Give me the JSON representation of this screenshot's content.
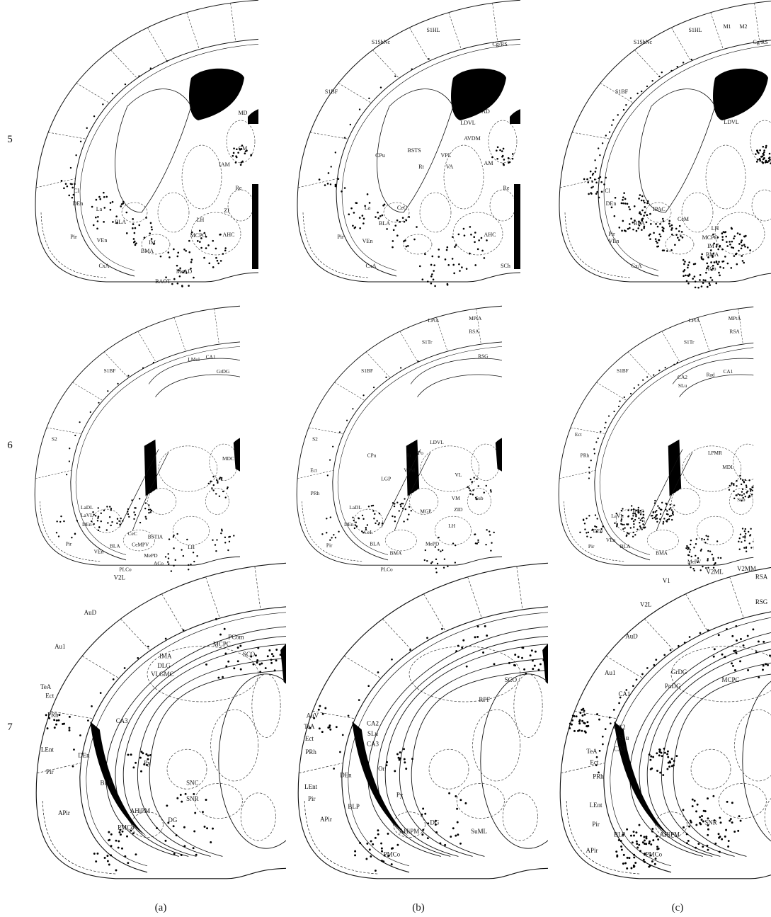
{
  "figure": {
    "row_labels": [
      "5",
      "6",
      "7"
    ],
    "panel_labels": [
      "(a)",
      "(b)",
      "(c)"
    ],
    "panels": [
      [
        {
          "regions": [
            "Cl",
            "DEn",
            "La",
            "BLA",
            "Pir",
            "VEn",
            "IM",
            "BMA",
            "CxA",
            "BAOT",
            "MeAD",
            "LH",
            "MCPO",
            "IAM",
            "Re",
            "MD",
            "CM",
            "ZI",
            "AHC"
          ]
        },
        {
          "regions": [
            "S1ShNc",
            "S1HL",
            "Cg/RS",
            "S1BF",
            "BSTS",
            "LDVL",
            "AD",
            "AVDM",
            "VPL",
            "Rt",
            "VA",
            "AM",
            "CPu",
            "La",
            "BLA",
            "Pir",
            "VEn",
            "CeC",
            "CxA",
            "Re",
            "AHC",
            "SCh"
          ]
        },
        {
          "regions": [
            "S1ShNc",
            "S1HL",
            "M1",
            "M2",
            "Cg/RS",
            "S1BF",
            "LDVL",
            "IPAC",
            "CeM",
            "BLA",
            "LH",
            "MCPO",
            "IM",
            "BMA",
            "CxA",
            "ACo",
            "Pir",
            "VEn",
            "Cl",
            "DEn"
          ]
        }
      ],
      [
        {
          "regions": [
            "S1BF",
            "S2",
            "LMol",
            "CA1",
            "GrDG",
            "MDC",
            "LaDL",
            "LaVL",
            "DEn",
            "CeC",
            "BSTIA",
            "CeMPV",
            "BLA",
            "Pir",
            "VEn",
            "LH",
            "MePD",
            "ACo",
            "PLCo"
          ]
        },
        {
          "regions": [
            "LPtA",
            "MPtA",
            "RSA",
            "S1Tr",
            "RSG",
            "S1BF",
            "S2",
            "Ect",
            "PRh",
            "CPu",
            "LDVL",
            "Po",
            "Rt",
            "VPM",
            "VL",
            "LGP",
            "MGP",
            "LH",
            "VM",
            "ZID",
            "Sub",
            "LaDL",
            "DEn",
            "CeL",
            "BLA",
            "Pir",
            "BMA",
            "MePD",
            "PLCo"
          ]
        },
        {
          "regions": [
            "LPtA",
            "MPtA",
            "RSA",
            "S1Tr",
            "S1BF",
            "Ect",
            "PRh",
            "CA2",
            "SLu",
            "Rad",
            "CA1",
            "LPMR",
            "MDL",
            "IPAC",
            "LaVL",
            "DEn",
            "BLA",
            "Pir",
            "VEn",
            "BMA",
            "MePV",
            "Sub"
          ]
        }
      ],
      [
        {
          "regions": [
            "V2L",
            "AuD",
            "Au1",
            "TeA",
            "Ect",
            "PRh",
            "LEnt",
            "Pir",
            "APir",
            "DEn",
            "BLP",
            "CA3",
            "Py",
            "AHiPM",
            "PMCo",
            "DG",
            "SNR",
            "SNC",
            "IMA",
            "DLG",
            "VLGMC",
            "MCPC",
            "PCom",
            "SCO"
          ]
        },
        {
          "regions": [
            "AuV",
            "TeA",
            "Ect",
            "PRh",
            "LEnt",
            "Pir",
            "APir",
            "CA2",
            "SLu",
            "CA3",
            "Or",
            "Py",
            "AHiPM",
            "PMCo",
            "DG",
            "RPF",
            "SCO",
            "SuML",
            "BLP",
            "DEn"
          ]
        },
        {
          "regions": [
            "V1",
            "V2ML",
            "V2MM",
            "RSA",
            "RSG",
            "V2L",
            "AuD",
            "Au1",
            "CA1",
            "CA2",
            "SLu",
            "CA3",
            "TeA",
            "Ect",
            "PRh",
            "LEnt",
            "Pir",
            "BLP",
            "AHiPM",
            "PMCo",
            "SNR",
            "GrDG",
            "PoDG",
            "MCPC",
            "APir"
          ]
        }
      ]
    ]
  }
}
